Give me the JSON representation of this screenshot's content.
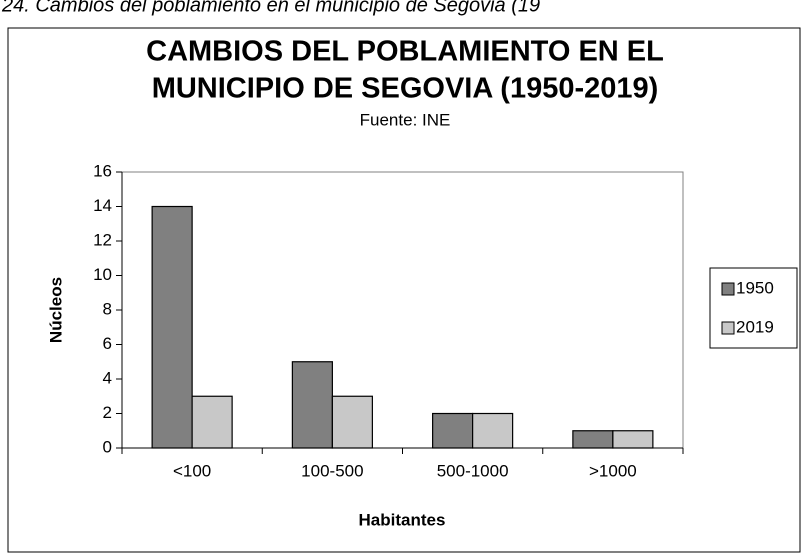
{
  "caption": "24. Cambios del poblamiento en el municipio de Segovia (19",
  "chart_data": {
    "type": "bar",
    "title": [
      "CAMBIOS DEL POBLAMIENTO EN EL",
      "MUNICIPIO DE SEGOVIA (1950-2019)"
    ],
    "subtitle": "Fuente: INE",
    "x_label": "Habitantes",
    "y_label": "Núcleos",
    "categories": [
      "<100",
      "100-500",
      "500-1000",
      ">1000"
    ],
    "series": [
      {
        "name": "1950",
        "color": "#808080",
        "values": [
          14,
          5,
          2,
          1
        ]
      },
      {
        "name": "2019",
        "color": "#c8c8c8",
        "values": [
          3,
          3,
          2,
          1
        ]
      }
    ],
    "ylim": [
      0,
      16
    ],
    "yticks": [
      0,
      2,
      4,
      6,
      8,
      10,
      12,
      14,
      16
    ],
    "legend": "right"
  }
}
